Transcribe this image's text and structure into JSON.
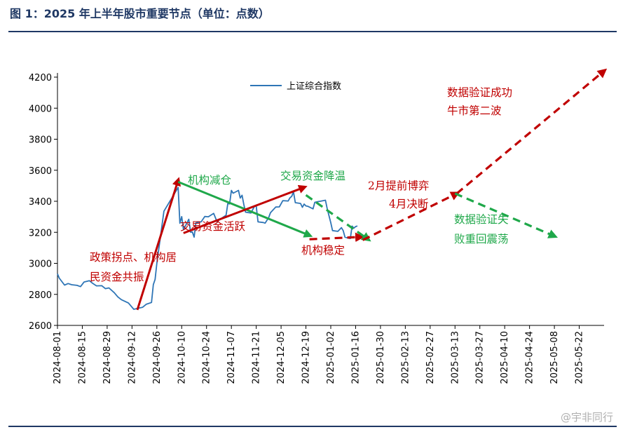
{
  "figure_title": "图 1：2025 年上半年股市重要节点（单位：点数）",
  "watermark": "@宇非同行",
  "colors": {
    "title": "#1f3864",
    "series": "#2e75b6",
    "red": "#c00000",
    "green": "#1fa84a",
    "axis": "#000000"
  },
  "chart_data": {
    "type": "line",
    "title": "",
    "xlabel": "",
    "ylabel": "",
    "ylim": [
      2600,
      4200
    ],
    "yticks": [
      2600,
      2800,
      3000,
      3200,
      3400,
      3600,
      3800,
      4000,
      4200
    ],
    "x_range": [
      "2024-08-01",
      "2025-06-05"
    ],
    "x_tick_labels": [
      "2024-08-01",
      "2024-08-15",
      "2024-08-29",
      "2024-09-12",
      "2024-09-26",
      "2024-10-10",
      "2024-10-24",
      "2024-11-07",
      "2024-11-21",
      "2024-12-05",
      "2024-12-19",
      "2025-01-02",
      "2025-01-16",
      "2025-01-30",
      "2025-02-13",
      "2025-02-27",
      "2025-03-13",
      "2025-03-27",
      "2025-04-10",
      "2025-04-24",
      "2025-05-08",
      "2025-05-22"
    ],
    "grid": false,
    "legend_position": "top",
    "series": [
      {
        "name": "上证综合指数",
        "color": "#2e75b6",
        "points": [
          [
            "2024-08-01",
            2932
          ],
          [
            "2024-08-02",
            2905
          ],
          [
            "2024-08-05",
            2860
          ],
          [
            "2024-08-07",
            2870
          ],
          [
            "2024-08-09",
            2862
          ],
          [
            "2024-08-12",
            2858
          ],
          [
            "2024-08-14",
            2850
          ],
          [
            "2024-08-16",
            2880
          ],
          [
            "2024-08-19",
            2888
          ],
          [
            "2024-08-21",
            2870
          ],
          [
            "2024-08-23",
            2855
          ],
          [
            "2024-08-26",
            2856
          ],
          [
            "2024-08-28",
            2837
          ],
          [
            "2024-08-30",
            2842
          ],
          [
            "2024-09-02",
            2811
          ],
          [
            "2024-09-04",
            2784
          ],
          [
            "2024-09-06",
            2766
          ],
          [
            "2024-09-10",
            2744
          ],
          [
            "2024-09-12",
            2717
          ],
          [
            "2024-09-13",
            2704
          ],
          [
            "2024-09-18",
            2717
          ],
          [
            "2024-09-20",
            2736
          ],
          [
            "2024-09-23",
            2748
          ],
          [
            "2024-09-24",
            2863
          ],
          [
            "2024-09-25",
            2896
          ],
          [
            "2024-09-26",
            3000
          ],
          [
            "2024-09-27",
            3087
          ],
          [
            "2024-09-30",
            3336
          ],
          [
            "2024-10-08",
            3489
          ],
          [
            "2024-10-09",
            3258
          ],
          [
            "2024-10-10",
            3301
          ],
          [
            "2024-10-11",
            3217
          ],
          [
            "2024-10-14",
            3284
          ],
          [
            "2024-10-15",
            3201
          ],
          [
            "2024-10-16",
            3202
          ],
          [
            "2024-10-17",
            3169
          ],
          [
            "2024-10-18",
            3261
          ],
          [
            "2024-10-21",
            3268
          ],
          [
            "2024-10-23",
            3302
          ],
          [
            "2024-10-25",
            3300
          ],
          [
            "2024-10-28",
            3322
          ],
          [
            "2024-10-30",
            3266
          ],
          [
            "2024-10-31",
            3279
          ],
          [
            "2024-11-04",
            3310
          ],
          [
            "2024-11-05",
            3386
          ],
          [
            "2024-11-06",
            3383
          ],
          [
            "2024-11-07",
            3470
          ],
          [
            "2024-11-08",
            3452
          ],
          [
            "2024-11-11",
            3470
          ],
          [
            "2024-11-12",
            3421
          ],
          [
            "2024-11-13",
            3439
          ],
          [
            "2024-11-14",
            3380
          ],
          [
            "2024-11-15",
            3330
          ],
          [
            "2024-11-18",
            3324
          ],
          [
            "2024-11-19",
            3346
          ],
          [
            "2024-11-20",
            3367
          ],
          [
            "2024-11-21",
            3370
          ],
          [
            "2024-11-22",
            3267
          ],
          [
            "2024-11-25",
            3263
          ],
          [
            "2024-11-26",
            3259
          ],
          [
            "2024-11-28",
            3295
          ],
          [
            "2024-11-29",
            3326
          ],
          [
            "2024-12-02",
            3363
          ],
          [
            "2024-12-04",
            3364
          ],
          [
            "2024-12-06",
            3404
          ],
          [
            "2024-12-09",
            3402
          ],
          [
            "2024-12-10",
            3422
          ],
          [
            "2024-12-11",
            3432
          ],
          [
            "2024-12-12",
            3461
          ],
          [
            "2024-12-13",
            3391
          ],
          [
            "2024-12-16",
            3386
          ],
          [
            "2024-12-17",
            3361
          ],
          [
            "2024-12-18",
            3382
          ],
          [
            "2024-12-19",
            3370
          ],
          [
            "2024-12-20",
            3368
          ],
          [
            "2024-12-23",
            3351
          ],
          [
            "2024-12-24",
            3393
          ],
          [
            "2024-12-26",
            3398
          ],
          [
            "2024-12-27",
            3400
          ],
          [
            "2024-12-30",
            3407
          ],
          [
            "2024-12-31",
            3352
          ],
          [
            "2025-01-02",
            3262
          ],
          [
            "2025-01-03",
            3211
          ],
          [
            "2025-01-06",
            3206
          ],
          [
            "2025-01-08",
            3230
          ],
          [
            "2025-01-09",
            3211
          ],
          [
            "2025-01-10",
            3168
          ],
          [
            "2025-01-13",
            3160
          ],
          [
            "2025-01-14",
            3240
          ],
          [
            "2025-01-15",
            3227
          ],
          [
            "2025-01-16",
            3237
          ],
          [
            "2025-01-17",
            3241
          ]
        ]
      }
    ],
    "annotations": [
      {
        "text": "数据验证成功",
        "color": "#c00000"
      },
      {
        "text": "牛市第二波",
        "color": "#c00000"
      },
      {
        "text": "机构减仓",
        "color": "#1fa84a"
      },
      {
        "text": "交易资金降温",
        "color": "#1fa84a"
      },
      {
        "text": "2月提前博弈",
        "color": "#c00000"
      },
      {
        "text": "4月决断",
        "color": "#c00000"
      },
      {
        "text": "交易资金活跃",
        "color": "#c00000"
      },
      {
        "text": "机构稳定",
        "color": "#c00000"
      },
      {
        "text": "数据验证失",
        "color": "#1fa84a"
      },
      {
        "text": "败重回震荡",
        "color": "#1fa84a"
      },
      {
        "text": "政策拐点、机构居",
        "color": "#c00000"
      },
      {
        "text": "民资金共振",
        "color": "#c00000"
      }
    ],
    "arrows": [
      {
        "style": "solid",
        "color": "#c00000",
        "from": [
          "2024-09-15",
          2700
        ],
        "to": [
          "2024-10-08",
          3535
        ]
      },
      {
        "style": "solid",
        "color": "#1fa84a",
        "from": [
          "2024-10-08",
          3525
        ],
        "to": [
          "2024-12-21",
          3180
        ]
      },
      {
        "style": "solid",
        "color": "#c00000",
        "from": [
          "2024-10-11",
          3195
        ],
        "to": [
          "2024-12-18",
          3490
        ]
      },
      {
        "style": "dashed",
        "color": "#c00000",
        "from": [
          "2024-12-21",
          3155
        ],
        "to": [
          "2025-01-19",
          3170
        ]
      },
      {
        "style": "dashed",
        "color": "#1fa84a",
        "from": [
          "2024-12-19",
          3440
        ],
        "to": [
          "2025-01-23",
          3155
        ]
      },
      {
        "style": "dashed",
        "color": "#c00000",
        "from": [
          "2025-01-20",
          3150
        ],
        "to": [
          "2025-03-14",
          3450
        ]
      },
      {
        "style": "dashed",
        "color": "#c00000",
        "from": [
          "2025-03-14",
          3450
        ],
        "to": [
          "2025-06-05",
          4240
        ]
      },
      {
        "style": "dashed",
        "color": "#1fa84a",
        "from": [
          "2025-03-13",
          3450
        ],
        "to": [
          "2025-05-08",
          3175
        ]
      }
    ]
  }
}
